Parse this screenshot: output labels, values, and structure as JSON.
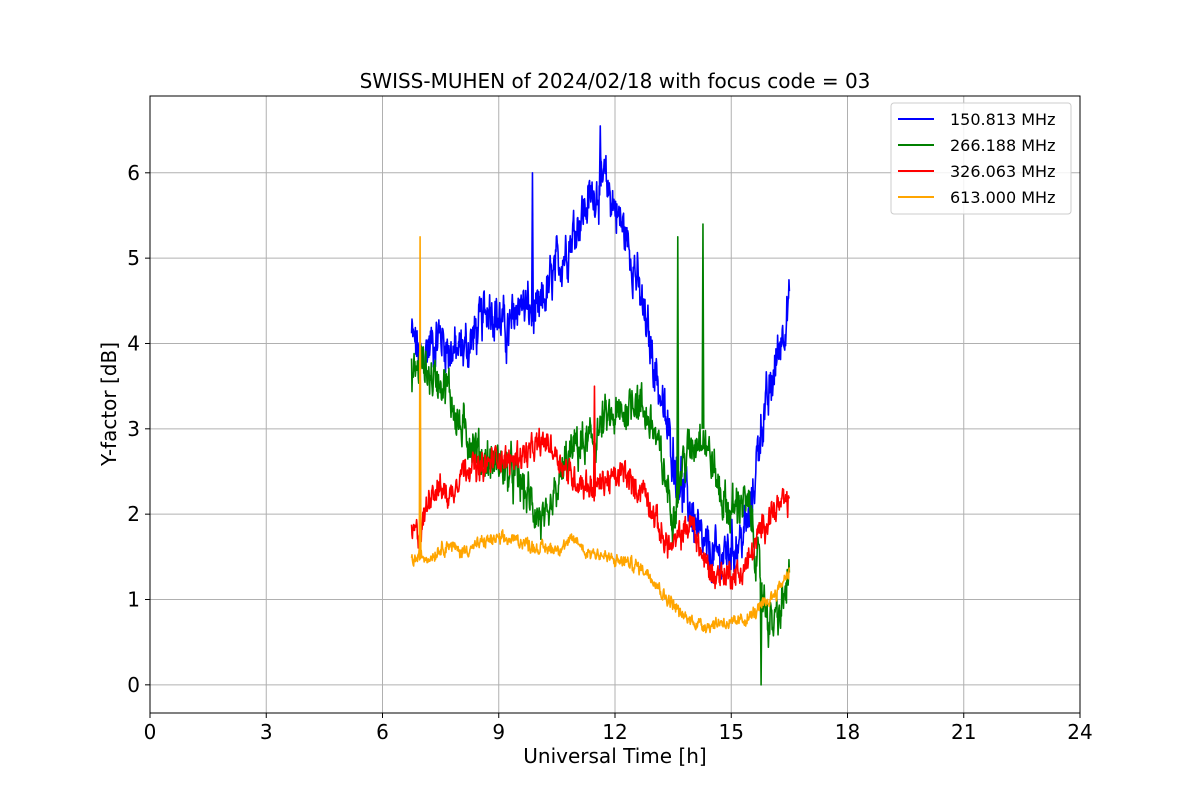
{
  "chart_data": {
    "type": "line",
    "title": "SWISS-MUHEN of 2024/02/18 with focus code = 03",
    "xlabel": "Universal Time [h]",
    "ylabel": "Y-factor [dB]",
    "xlim": [
      0,
      24
    ],
    "ylim": [
      -0.33,
      6.9
    ],
    "xticks": [
      0,
      3,
      6,
      9,
      12,
      15,
      18,
      21,
      24
    ],
    "yticks": [
      0,
      1,
      2,
      3,
      4,
      5,
      6
    ],
    "grid": true,
    "legend_position": "top-right",
    "series": [
      {
        "name": "150.813 MHz",
        "color": "#0000ff",
        "noise": 0.45,
        "x": [
          6.75,
          7.0,
          7.25,
          7.5,
          7.75,
          8.0,
          8.25,
          8.5,
          8.75,
          9.0,
          9.25,
          9.5,
          9.75,
          10.0,
          10.25,
          10.5,
          10.75,
          11.0,
          11.25,
          11.5,
          11.75,
          12.0,
          12.25,
          12.5,
          12.75,
          13.0,
          13.25,
          13.5,
          13.75,
          14.0,
          14.25,
          14.5,
          14.75,
          15.0,
          15.25,
          15.5,
          15.75,
          16.0,
          16.25,
          16.5
        ],
        "y": [
          4.1,
          3.8,
          4.0,
          4.1,
          3.9,
          3.9,
          4.0,
          4.2,
          4.5,
          4.3,
          4.1,
          4.5,
          4.4,
          4.3,
          4.6,
          4.9,
          5.1,
          5.4,
          5.6,
          5.8,
          5.9,
          5.6,
          5.3,
          4.9,
          4.3,
          3.8,
          3.2,
          2.7,
          2.3,
          2.0,
          1.6,
          1.5,
          1.5,
          1.6,
          1.7,
          2.0,
          3.0,
          3.4,
          4.0,
          4.5
        ]
      },
      {
        "name": "266.188 MHz",
        "color": "#008000",
        "noise": 0.4,
        "x": [
          6.75,
          7.0,
          7.25,
          7.5,
          7.75,
          8.0,
          8.25,
          8.5,
          8.75,
          9.0,
          9.25,
          9.5,
          9.75,
          10.0,
          10.25,
          10.5,
          10.75,
          11.0,
          11.25,
          11.5,
          11.75,
          12.0,
          12.25,
          12.5,
          12.75,
          13.0,
          13.25,
          13.5,
          13.75,
          14.0,
          14.25,
          14.5,
          14.75,
          15.0,
          15.25,
          15.5,
          15.75,
          16.0,
          16.25,
          16.5
        ],
        "y": [
          3.6,
          3.8,
          3.6,
          3.6,
          3.4,
          3.0,
          2.9,
          2.7,
          2.6,
          2.6,
          2.5,
          2.4,
          2.2,
          2.0,
          1.8,
          2.3,
          2.6,
          2.8,
          2.8,
          2.9,
          3.1,
          3.1,
          3.2,
          3.4,
          3.2,
          3.0,
          2.5,
          2.0,
          2.6,
          2.8,
          3.0,
          2.6,
          2.2,
          2.0,
          2.2,
          2.0,
          1.2,
          0.7,
          0.8,
          1.3
        ]
      },
      {
        "name": "326.063 MHz",
        "color": "#ff0000",
        "noise": 0.25,
        "x": [
          6.75,
          7.0,
          7.25,
          7.5,
          7.75,
          8.0,
          8.25,
          8.5,
          8.75,
          9.0,
          9.25,
          9.5,
          9.75,
          10.0,
          10.25,
          10.5,
          10.75,
          11.0,
          11.25,
          11.5,
          11.75,
          12.0,
          12.25,
          12.5,
          12.75,
          13.0,
          13.25,
          13.5,
          13.75,
          14.0,
          14.25,
          14.5,
          14.75,
          15.0,
          15.25,
          15.5,
          15.75,
          16.0,
          16.25,
          16.5
        ],
        "y": [
          1.75,
          1.8,
          2.3,
          2.3,
          2.2,
          2.5,
          2.6,
          2.5,
          2.6,
          2.7,
          2.6,
          2.7,
          2.7,
          2.8,
          2.85,
          2.7,
          2.5,
          2.4,
          2.35,
          2.3,
          2.4,
          2.4,
          2.5,
          2.3,
          2.3,
          2.0,
          1.7,
          1.6,
          1.8,
          1.9,
          1.5,
          1.3,
          1.3,
          1.3,
          1.3,
          1.5,
          1.8,
          2.0,
          2.1,
          2.15
        ]
      },
      {
        "name": "613.000 MHz",
        "color": "#ffa500",
        "noise": 0.12,
        "x": [
          6.75,
          7.0,
          7.25,
          7.5,
          7.75,
          8.0,
          8.25,
          8.5,
          8.75,
          9.0,
          9.25,
          9.5,
          9.75,
          10.0,
          10.25,
          10.5,
          10.75,
          11.0,
          11.25,
          11.5,
          11.75,
          12.0,
          12.25,
          12.5,
          12.75,
          13.0,
          13.25,
          13.5,
          13.75,
          14.0,
          14.25,
          14.5,
          14.75,
          15.0,
          15.25,
          15.5,
          15.75,
          16.0,
          16.25,
          16.5
        ],
        "y": [
          1.45,
          1.5,
          1.5,
          1.6,
          1.65,
          1.55,
          1.6,
          1.65,
          1.7,
          1.7,
          1.7,
          1.7,
          1.65,
          1.6,
          1.6,
          1.6,
          1.65,
          1.7,
          1.55,
          1.55,
          1.5,
          1.45,
          1.45,
          1.4,
          1.35,
          1.25,
          1.05,
          0.95,
          0.8,
          0.75,
          0.7,
          0.7,
          0.75,
          0.7,
          0.75,
          0.8,
          0.9,
          1.0,
          1.15,
          1.35
        ]
      }
    ],
    "spikes": [
      {
        "series": 3,
        "x": 6.95,
        "y": 5.25
      },
      {
        "series": 3,
        "x": 6.98,
        "y": 1.5
      },
      {
        "series": 0,
        "x": 9.85,
        "y": 6.0
      },
      {
        "series": 0,
        "x": 11.6,
        "y": 6.55
      },
      {
        "series": 1,
        "x": 14.25,
        "y": 5.4
      },
      {
        "series": 1,
        "x": 13.6,
        "y": 5.25
      },
      {
        "series": 2,
        "x": 11.45,
        "y": 3.5
      },
      {
        "series": 1,
        "x": 15.75,
        "y": 0.0
      }
    ]
  }
}
